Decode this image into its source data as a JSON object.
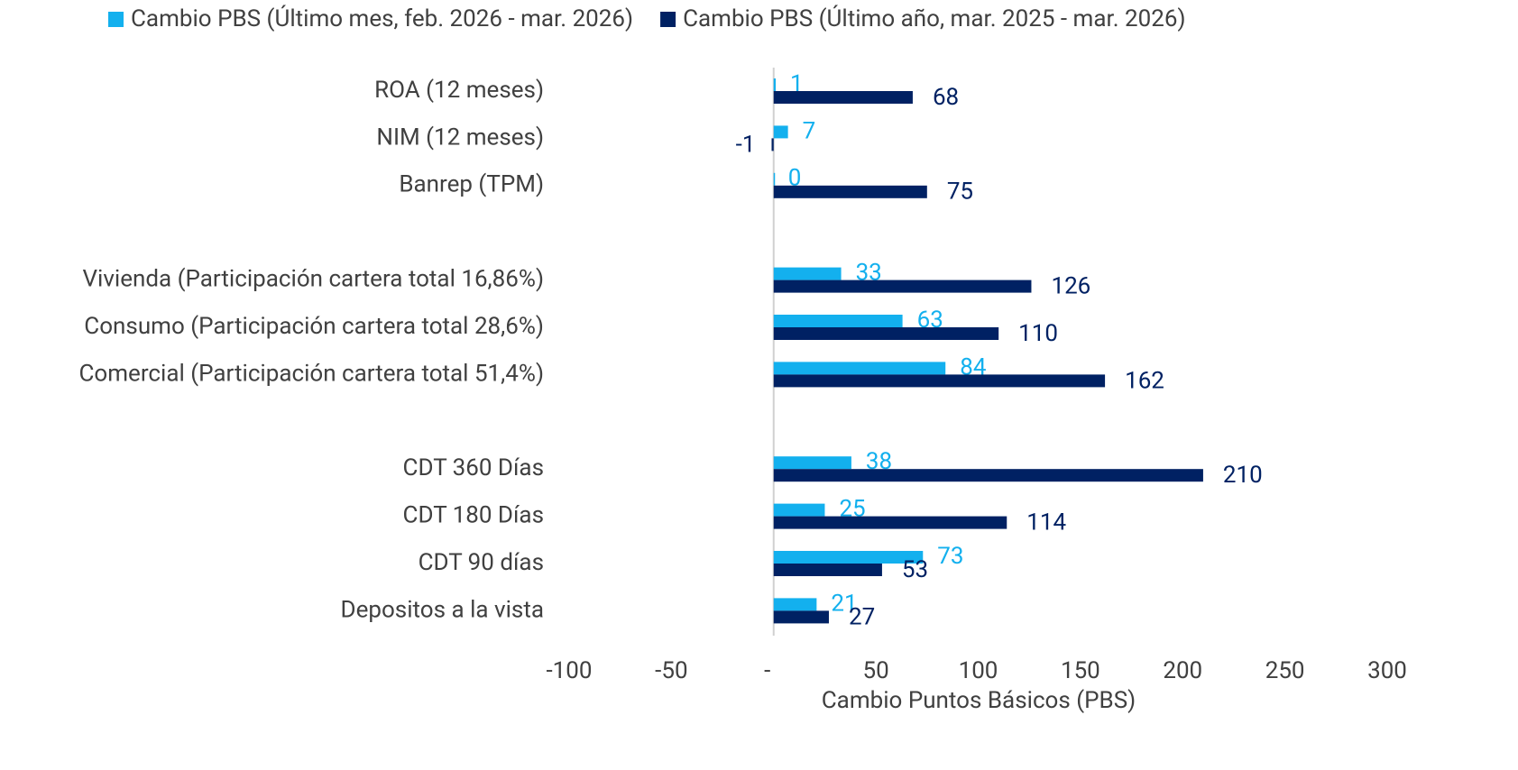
{
  "chart_data": {
    "type": "barh",
    "categories": [
      "ROA (12 meses)",
      "NIM (12 meses)",
      "Banrep (TPM)",
      null,
      "Vivienda (Participación cartera total 16,86%)",
      "Consumo (Participación cartera total 28,6%)",
      "Comercial (Participación cartera total 51,4%)",
      null,
      "CDT 360 Días",
      "CDT 180 Días",
      "CDT 90 días",
      "Depositos a la vista"
    ],
    "series": [
      {
        "name": "Cambio PBS (Último mes, feb. 2026 - mar. 2026)",
        "color": "#13b0ee",
        "values": [
          1,
          7,
          0,
          null,
          33,
          63,
          84,
          null,
          38,
          25,
          73,
          21
        ]
      },
      {
        "name": "Cambio PBS (Último año, mar. 2025 - mar. 2026)",
        "color": "#002163",
        "values": [
          68,
          -1,
          75,
          null,
          126,
          110,
          162,
          null,
          210,
          114,
          53,
          27
        ]
      }
    ],
    "xlabel": "Cambio Puntos Básicos (PBS)",
    "xlim": [
      -100,
      300
    ],
    "xticks": [
      -100,
      -50,
      {
        "value": 0,
        "label": "-"
      },
      50,
      100,
      150,
      200,
      250,
      300
    ],
    "legend": "top"
  }
}
